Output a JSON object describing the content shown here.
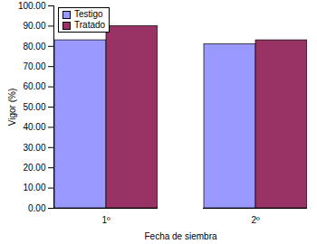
{
  "chart_data": {
    "type": "bar",
    "categories": [
      "1º",
      "2º"
    ],
    "series": [
      {
        "name": "Testigo",
        "color": "#9999ff",
        "values": [
          83,
          81
        ]
      },
      {
        "name": "Tratado",
        "color": "#993366",
        "values": [
          90,
          83
        ]
      }
    ],
    "x_label": "Fecha de siembra",
    "y_label": "Vigor (%)",
    "ylim": [
      0,
      100
    ],
    "yticks": [
      {
        "value": 0,
        "label": "0.00"
      },
      {
        "value": 10,
        "label": "10.00"
      },
      {
        "value": 20,
        "label": "20.00"
      },
      {
        "value": 30,
        "label": "30.00"
      },
      {
        "value": 40,
        "label": "40.00"
      },
      {
        "value": 50,
        "label": "50.00"
      },
      {
        "value": 60,
        "label": "60.00"
      },
      {
        "value": 70,
        "label": "70.00"
      },
      {
        "value": 80,
        "label": "80.00"
      },
      {
        "value": 90,
        "label": "90.00"
      },
      {
        "value": 100,
        "label": "100.00"
      }
    ],
    "legend": "top-left",
    "grid": false
  }
}
